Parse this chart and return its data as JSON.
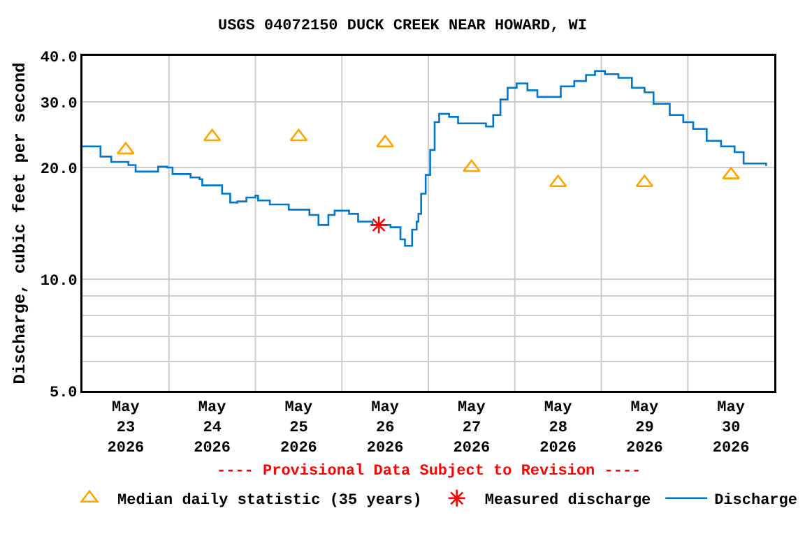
{
  "chart_data": {
    "type": "step",
    "title": "USGS 04072150 DUCK CREEK NEAR HOWARD, WI",
    "ylabel": "Discharge, cubic feet per second",
    "annotations": [
      "---- Provisional Data Subject to Revision ----"
    ],
    "log": "y",
    "grid": true,
    "legend": "bottom",
    "line_style": "solid",
    "xlim": [
      "2026-05-23T00:00",
      "2026-05-31T00:00"
    ],
    "xticks": [
      {
        "value": "2026-05-23T12:00",
        "label": "May\n23\n2026"
      },
      {
        "value": "2026-05-24T12:00",
        "label": "May\n24\n2026"
      },
      {
        "value": "2026-05-25T12:00",
        "label": "May\n25\n2026"
      },
      {
        "value": "2026-05-26T12:00",
        "label": "May\n26\n2026"
      },
      {
        "value": "2026-05-27T12:00",
        "label": "May\n27\n2026"
      },
      {
        "value": "2026-05-28T12:00",
        "label": "May\n28\n2026"
      },
      {
        "value": "2026-05-29T12:00",
        "label": "May\n29\n2026"
      },
      {
        "value": "2026-05-30T12:00",
        "label": "May\n30\n2026"
      },
      {
        "value": "2026-05-24T00:00",
        "label": null
      },
      {
        "value": "2026-05-25T00:00",
        "label": null
      },
      {
        "value": "2026-05-26T00:00",
        "label": null
      },
      {
        "value": "2026-05-27T00:00",
        "label": null
      },
      {
        "value": "2026-05-28T00:00",
        "label": null
      },
      {
        "value": "2026-05-29T00:00",
        "label": null
      },
      {
        "value": "2026-05-30T00:00",
        "label": null
      }
    ],
    "ylim": [
      5,
      40
    ],
    "yticks": [
      {
        "value": 5,
        "label": "5.0"
      },
      {
        "value": 6,
        "label": null
      },
      {
        "value": 7,
        "label": null
      },
      {
        "value": 8,
        "label": null
      },
      {
        "value": 9,
        "label": null
      },
      {
        "value": 10,
        "label": "10.0"
      },
      {
        "value": 20,
        "label": "20.0"
      },
      {
        "value": 30,
        "label": "30.0"
      },
      {
        "value": 40,
        "label": "40.0"
      }
    ],
    "series": [
      {
        "name": "Discharge",
        "color": "#0077cc",
        "x": [
          "2026-05-23T00:00",
          "2026-05-23T05:00",
          "2026-05-23T08:00",
          "2026-05-23T12:45",
          "2026-05-23T14:45",
          "2026-05-23T19:45",
          "2026-05-23T21:00",
          "2026-05-23T23:30",
          "2026-05-24T01:00",
          "2026-05-24T06:00",
          "2026-05-24T08:30",
          "2026-05-24T09:15",
          "2026-05-24T13:15",
          "2026-05-24T14:45",
          "2026-05-24T17:00",
          "2026-05-24T19:00",
          "2026-05-24T21:30",
          "2026-05-25T00:00",
          "2026-05-25T00:45",
          "2026-05-25T04:00",
          "2026-05-25T08:00",
          "2026-05-25T09:15",
          "2026-05-25T13:00",
          "2026-05-25T15:00",
          "2026-05-25T17:30",
          "2026-05-25T19:00",
          "2026-05-25T20:15",
          "2026-05-25T22:00",
          "2026-05-26T02:00",
          "2026-05-26T04:30",
          "2026-05-26T08:30",
          "2026-05-26T13:30",
          "2026-05-26T16:15",
          "2026-05-26T17:30",
          "2026-05-26T18:30",
          "2026-05-26T19:30",
          "2026-05-26T20:45",
          "2026-05-26T21:15",
          "2026-05-26T22:00",
          "2026-05-26T23:15",
          "2026-05-27T00:30",
          "2026-05-27T01:45",
          "2026-05-27T03:00",
          "2026-05-27T05:45",
          "2026-05-27T08:15",
          "2026-05-27T13:30",
          "2026-05-27T16:00",
          "2026-05-27T18:00",
          "2026-05-27T20:00",
          "2026-05-27T22:00",
          "2026-05-28T00:30",
          "2026-05-28T03:30",
          "2026-05-28T06:15",
          "2026-05-28T10:00",
          "2026-05-28T12:45",
          "2026-05-28T16:30",
          "2026-05-28T19:45",
          "2026-05-28T22:15",
          "2026-05-29T01:00",
          "2026-05-29T04:45",
          "2026-05-29T08:30",
          "2026-05-29T12:00",
          "2026-05-29T14:30",
          "2026-05-29T19:00",
          "2026-05-29T22:45",
          "2026-05-30T01:30",
          "2026-05-30T05:15",
          "2026-05-30T09:15",
          "2026-05-30T13:00",
          "2026-05-30T15:30",
          "2026-05-30T21:45"
        ],
        "values": [
          22.8,
          21.4,
          20.7,
          20.3,
          19.5,
          19.5,
          20.1,
          20.0,
          19.2,
          18.8,
          18.6,
          17.9,
          17.9,
          17.0,
          16.1,
          16.2,
          16.6,
          16.8,
          16.3,
          15.9,
          15.9,
          15.4,
          15.4,
          14.9,
          14.0,
          14.0,
          14.9,
          15.3,
          15.0,
          14.3,
          14.0,
          13.8,
          12.8,
          12.3,
          12.3,
          13.6,
          14.3,
          15.0,
          17.0,
          19.1,
          22.3,
          26.5,
          27.9,
          27.4,
          26.3,
          26.3,
          25.8,
          27.7,
          30.5,
          32.8,
          33.7,
          32.3,
          31.0,
          31.0,
          33.1,
          34.2,
          35.5,
          36.4,
          35.7,
          34.9,
          32.8,
          31.9,
          29.7,
          27.7,
          26.5,
          25.4,
          23.6,
          22.8,
          22.0,
          20.5,
          20.2
        ]
      },
      {
        "name": "Median daily statistic (35 years)",
        "type": "scatter",
        "marker": "triangle",
        "color": "#ffa500",
        "x": [
          "2026-05-23T12:00",
          "2026-05-24T12:00",
          "2026-05-25T12:00",
          "2026-05-26T12:00",
          "2026-05-27T12:00",
          "2026-05-28T12:00",
          "2026-05-29T12:00",
          "2026-05-30T12:00"
        ],
        "values": [
          22.3,
          24.2,
          24.2,
          23.3,
          20.0,
          18.2,
          18.2,
          19.1
        ]
      },
      {
        "name": "Measured discharge",
        "type": "scatter",
        "marker": "cross",
        "color": "#ff0000",
        "x": [
          "2026-05-26T10:15"
        ],
        "values": [
          14.0
        ]
      }
    ]
  }
}
